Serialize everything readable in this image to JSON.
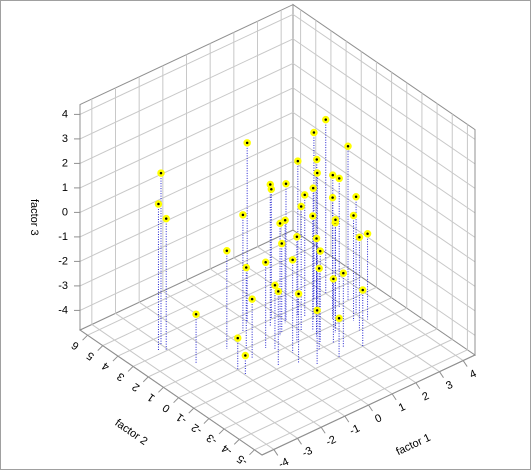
{
  "chart_data": {
    "type": "scatter3d",
    "x_label": "factor 1",
    "y_label": "factor 2",
    "z_label": "factor 3",
    "xlim": [
      -4.5,
      4.5
    ],
    "ylim": [
      -5.5,
      6.5
    ],
    "zlim": [
      -4.8,
      4.4
    ],
    "xticks": [
      -4,
      -3,
      -2,
      -1,
      0,
      1,
      2,
      3,
      4
    ],
    "yticks": [
      -5,
      -4,
      -3,
      -2,
      -1,
      0,
      1,
      2,
      3,
      4,
      5,
      6
    ],
    "zticks": [
      -4,
      -3,
      -2,
      -1,
      0,
      1,
      2,
      3,
      4
    ],
    "grid": true,
    "color": "#ffff00",
    "drop_line_color": "#2020d0",
    "x": [
      -3.0,
      -3.3,
      -3.1,
      -2.8,
      -1.5,
      -2.0,
      -2.0,
      0.0,
      -0.5,
      0.5,
      1.0,
      1.5,
      2.5,
      3.0,
      2.0,
      1.0,
      0.5,
      0.0,
      1.2,
      2.2,
      2.8,
      1.8,
      0.8,
      -0.2,
      -0.8,
      1.5,
      2.5,
      3.0,
      2.0,
      1.0,
      0.3,
      -0.5,
      1.7,
      2.3,
      0.7,
      -1.0,
      -0.3,
      1.3,
      2.7,
      3.3,
      0.2,
      1.1,
      2.0,
      1.6,
      0.9,
      -1.2,
      1.4,
      2.4,
      0.4,
      3.1
    ],
    "y": [
      3.5,
      3.2,
      3.0,
      1.5,
      1.5,
      0.0,
      -0.5,
      2.5,
      2.0,
      1.0,
      1.5,
      1.5,
      2.0,
      2.0,
      1.0,
      0.5,
      0.0,
      -0.5,
      -0.2,
      0.3,
      0.8,
      -0.5,
      -1.0,
      -1.2,
      -0.8,
      -1.5,
      -1.0,
      0.0,
      -2.0,
      -2.0,
      0.8,
      0.5,
      0.8,
      1.5,
      2.0,
      1.0,
      0.2,
      0.2,
      -0.3,
      1.0,
      -1.8,
      -0.6,
      -0.2,
      1.2,
      1.4,
      0.3,
      -1.0,
      0.6,
      1.6,
      -0.6
    ],
    "z": [
      2.2,
      1.2,
      0.6,
      -2.8,
      -0.8,
      -3.5,
      -4.0,
      2.5,
      0.0,
      -1.2,
      0.8,
      1.5,
      2.0,
      2.3,
      1.0,
      0.3,
      -0.5,
      -1.0,
      -0.8,
      0.2,
      0.5,
      -0.3,
      -1.5,
      -2.0,
      -1.8,
      -1.8,
      -1.0,
      0.0,
      -2.5,
      -3.2,
      -0.2,
      -1.3,
      0.6,
      1.2,
      0.5,
      -1.5,
      -2.2,
      -0.1,
      -0.5,
      1.5,
      -2.6,
      -1.1,
      -0.4,
      0.2,
      -0.6,
      -2.4,
      -2.2,
      0.9,
      1.0,
      -1.3
    ]
  }
}
